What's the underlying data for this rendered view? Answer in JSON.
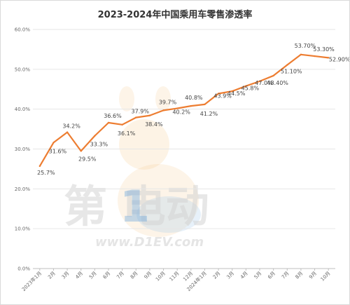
{
  "watermark": {
    "brand_text": "第 电动",
    "url_text": "www.D1EV.com"
  },
  "colors": {
    "line": "#ED7D31",
    "grid": "#E6E6E6",
    "axis": "#BFBFBF"
  },
  "chart_data": {
    "type": "line",
    "title": "2023-2024年中国乘用车零售渗透率",
    "xlabel": "",
    "ylabel": "",
    "ylim": [
      0,
      60
    ],
    "grid": true,
    "y_ticks": [
      "0.0%",
      "10.0%",
      "20.0%",
      "30.0%",
      "40.0%",
      "50.0%",
      "60.0%"
    ],
    "categories": [
      "2023年1月",
      "2月",
      "3月",
      "4月",
      "5月",
      "6月",
      "7月",
      "8月",
      "9月",
      "10月",
      "11月",
      "12月",
      "2024年1月",
      "2月",
      "3月",
      "4月",
      "5月",
      "6月",
      "7月",
      "8月",
      "9月",
      "10月"
    ],
    "series": [
      {
        "name": "",
        "values": [
          25.7,
          31.6,
          34.2,
          29.5,
          33.3,
          36.6,
          36.1,
          37.9,
          38.4,
          39.7,
          40.2,
          40.8,
          41.2,
          43.9,
          44.5,
          45.8,
          47.0,
          48.4,
          51.1,
          53.7,
          53.3,
          52.9
        ],
        "labels": [
          "25.7%",
          "31.6%",
          "34.2%",
          "29.5%",
          "33.3%",
          "36.6%",
          "36.1%",
          "37.9%",
          "38.4%",
          "39.7%",
          "40.2%",
          "40.8%",
          "41.2%",
          "43.9%",
          "44.5%",
          "45.8%",
          "47.0%",
          "48.40%",
          "51.10%",
          "53.70%",
          "53.30%",
          "52.90%"
        ]
      }
    ]
  }
}
